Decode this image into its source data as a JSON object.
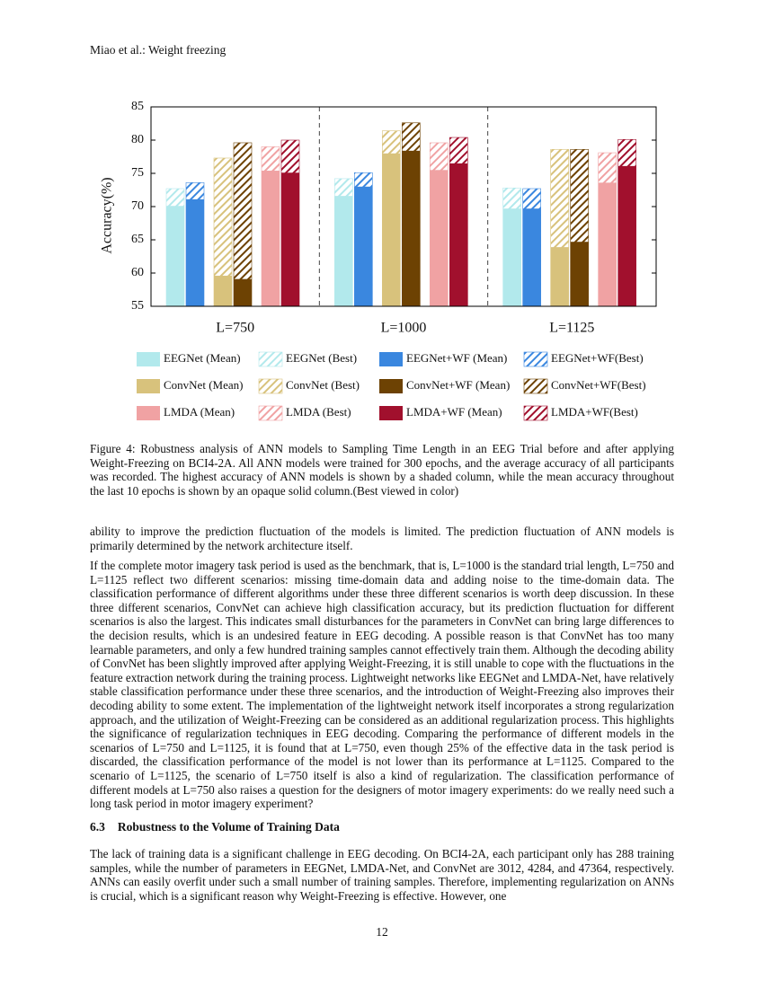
{
  "running_head": "Miao et al.: Weight freezing",
  "chart_data": {
    "type": "bar",
    "ylabel": "Accuracy(%)",
    "categories": [
      "L=750",
      "L=1000",
      "L=1125"
    ],
    "ylim": [
      55,
      85
    ],
    "yticks": [
      55,
      60,
      65,
      70,
      75,
      80,
      85
    ],
    "series": [
      {
        "name": "EEGNet (Mean)",
        "color": "#b2e9ec",
        "hatch": false,
        "values": [
          70.1,
          71.6,
          69.7
        ]
      },
      {
        "name": "EEGNet (Best)",
        "color": "#b2e9ec",
        "hatch": true,
        "values": [
          72.7,
          74.2,
          72.8
        ]
      },
      {
        "name": "EEGNet+WF (Mean)",
        "color": "#3a87df",
        "hatch": false,
        "values": [
          71.1,
          73.0,
          69.7
        ]
      },
      {
        "name": "EEGNet+WF(Best)",
        "color": "#3a87df",
        "hatch": true,
        "values": [
          73.6,
          75.1,
          72.7
        ]
      },
      {
        "name": "ConvNet (Mean)",
        "color": "#d8c27c",
        "hatch": false,
        "values": [
          59.6,
          78.0,
          63.9
        ]
      },
      {
        "name": "ConvNet (Best)",
        "color": "#d8c27c",
        "hatch": true,
        "values": [
          77.3,
          81.4,
          78.6
        ]
      },
      {
        "name": "ConvNet+WF (Mean)",
        "color": "#6d4203",
        "hatch": false,
        "values": [
          59.1,
          78.4,
          64.7
        ]
      },
      {
        "name": "ConvNet+WF(Best)",
        "color": "#6d4203",
        "hatch": true,
        "values": [
          79.6,
          82.6,
          78.6
        ]
      },
      {
        "name": "LMDA (Mean)",
        "color": "#f0a2a3",
        "hatch": false,
        "values": [
          75.4,
          75.5,
          73.6
        ]
      },
      {
        "name": "LMDA (Best)",
        "color": "#f0a2a3",
        "hatch": true,
        "values": [
          79.0,
          79.6,
          78.1
        ]
      },
      {
        "name": "LMDA+WF (Mean)",
        "color": "#a1102d",
        "hatch": false,
        "values": [
          75.1,
          76.5,
          76.1
        ]
      },
      {
        "name": "LMDA+WF(Best)",
        "color": "#a1102d",
        "hatch": true,
        "values": [
          80.0,
          80.4,
          80.1
        ]
      }
    ]
  },
  "caption": "Figure 4: Robustness analysis of ANN models to Sampling Time Length in an EEG Trial before and after applying Weight-Freezing on BCI4-2A. All ANN models were trained for 300 epochs, and the average accuracy of all participants was recorded. The highest accuracy of ANN models is shown by a shaded column, while the mean accuracy throughout the last 10 epochs is shown by an opaque solid column.(Best viewed in color)",
  "paragraphs": [
    "ability to improve the prediction fluctuation of the models is limited. The prediction fluctuation of ANN models is primarily determined by the network architecture itself.",
    "If the complete motor imagery task period is used as the benchmark, that is, L=1000 is the standard trial length, L=750 and L=1125 reflect two different scenarios: missing time-domain data and adding noise to the time-domain data. The classification performance of different algorithms under these three different scenarios is worth deep discussion. In these three different scenarios, ConvNet can achieve high classification accuracy, but its prediction fluctuation for different scenarios is also the largest. This indicates small disturbances for the parameters in ConvNet can bring large differences to the decision results, which is an undesired feature in EEG decoding. A possible reason is that ConvNet has too many learnable parameters, and only a few hundred training samples cannot effectively train them. Although the decoding ability of ConvNet has been slightly improved after applying Weight-Freezing, it is still unable to cope with the fluctuations in the feature extraction network during the training process. Lightweight networks like EEGNet and LMDA-Net, have relatively stable classification performance under these three scenarios, and the introduction of Weight-Freezing also improves their decoding ability to some extent. The implementation of the lightweight network itself incorporates a strong regularization approach, and the utilization of Weight-Freezing can be considered as an additional regularization process. This highlights the significance of regularization techniques in EEG decoding. Comparing the performance of different models in the scenarios of L=750 and L=1125, it is found that at L=750, even though 25% of the effective data in the task period is discarded, the classification performance of the model is not lower than its performance at L=1125. Compared to the scenario of L=1125, the scenario of L=750 itself is also a kind of regularization. The classification performance of different models at L=750 also raises a question for the designers of motor imagery experiments: do we really need such a long task period in motor imagery experiment?"
  ],
  "section": {
    "number": "6.3",
    "title": "Robustness to the Volume of Training Data"
  },
  "section_paragraph": "The lack of training data is a significant challenge in EEG decoding. On BCI4-2A, each participant only has 288 training samples, while the number of parameters in EEGNet, LMDA-Net, and ConvNet are 3012, 4284, and 47364, respectively. ANNs can easily overfit under such a small number of training samples. Therefore, implementing regularization on ANNs is crucial, which is a significant reason why Weight-Freezing is effective. However, one",
  "page_number": "12"
}
